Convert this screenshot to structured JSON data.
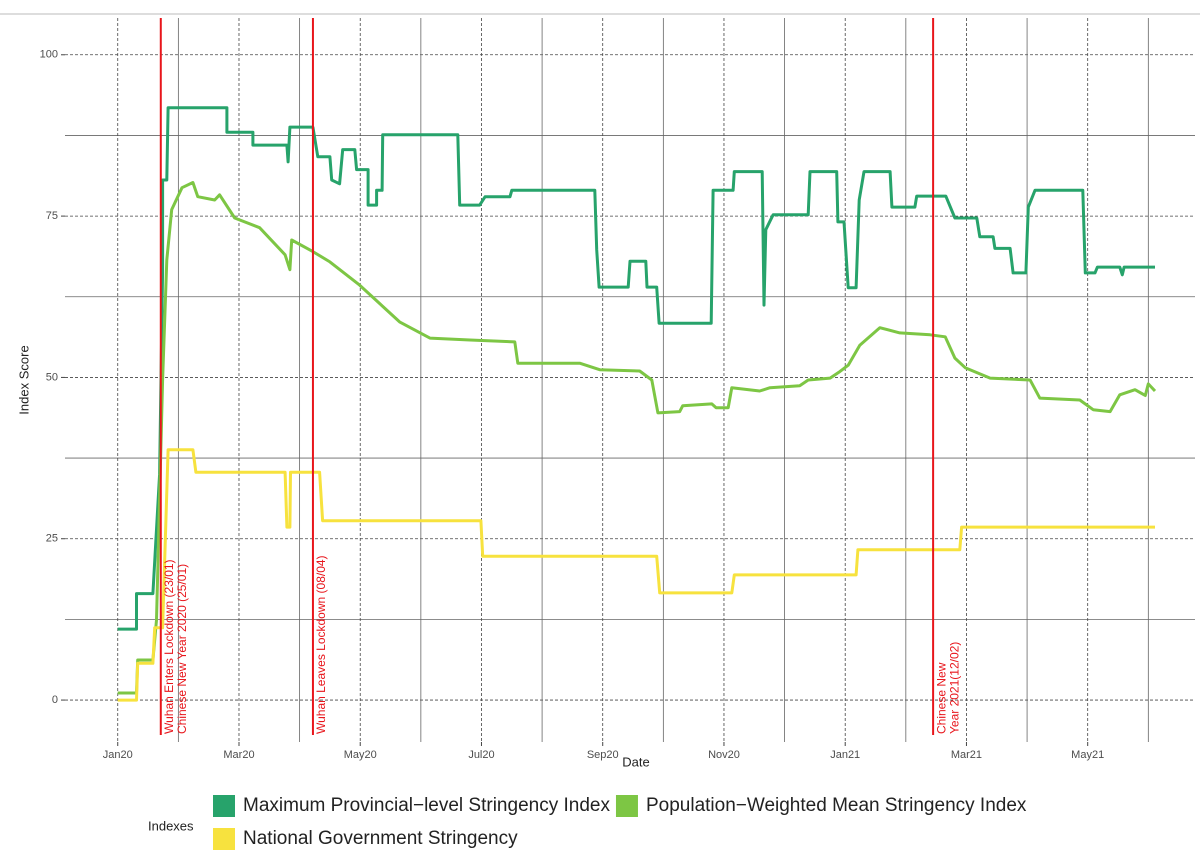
{
  "chart_data": {
    "type": "line",
    "x_label": "Date",
    "y_label": "Index Score",
    "legend_title": "Indexes",
    "legend_position": "bottom",
    "grid": true,
    "minor_grid": true,
    "xlim": [
      -0.87,
      17.77
    ],
    "xticks": [
      {
        "value": 0,
        "label": "Jan20"
      },
      {
        "value": 2,
        "label": "Mar20"
      },
      {
        "value": 4,
        "label": "May20"
      },
      {
        "value": 6,
        "label": "Jul20"
      },
      {
        "value": 8,
        "label": "Sep20"
      },
      {
        "value": 10,
        "label": "Nov20"
      },
      {
        "value": 12,
        "label": "Jan21"
      },
      {
        "value": 14,
        "label": "Mar21"
      },
      {
        "value": 16,
        "label": "May21"
      }
    ],
    "ylim": [
      -6.5,
      105.7
    ],
    "yticks": [
      0,
      25,
      50,
      75,
      100
    ],
    "annotation_color": "#e8151b",
    "annotations": [
      {
        "x": 0.71,
        "text": [
          "Wuhan Enters Lockdown (23/01)",
          "Chinese New Year 2020 (25/01)"
        ]
      },
      {
        "x": 3.22,
        "text": [
          "Wuhan Leaves Lockdown (08/04)"
        ]
      },
      {
        "x": 13.45,
        "text": [
          "Chinese New",
          "Year 2021(12/02)"
        ]
      }
    ],
    "series": [
      {
        "name": "Maximum Provincial−level Stringency Index",
        "color": "#27a36b",
        "x": [
          0,
          0.31,
          0.31,
          0.58,
          0.69,
          0.74,
          0.74,
          0.81,
          0.83,
          1.8,
          1.8,
          2.23,
          2.23,
          2.79,
          2.81,
          2.84,
          3.22,
          3.3,
          3.5,
          3.53,
          3.66,
          3.71,
          3.91,
          3.94,
          4.13,
          4.13,
          4.27,
          4.27,
          4.36,
          4.37,
          5.61,
          5.64,
          5.97,
          6.06,
          6.47,
          6.5,
          7.87,
          7.9,
          7.94,
          8.42,
          8.45,
          8.71,
          8.73,
          8.89,
          8.93,
          9.79,
          9.82,
          10.15,
          10.17,
          10.63,
          10.66,
          10.69,
          10.81,
          11.39,
          11.42,
          11.86,
          11.88,
          11.98,
          12.05,
          12.18,
          12.23,
          12.31,
          12.74,
          12.77,
          13.15,
          13.18,
          13.66,
          13.81,
          14.17,
          14.22,
          14.44,
          14.47,
          14.72,
          14.77,
          14.98,
          15.02,
          15.13,
          15.92,
          15.96,
          16.12,
          16.16,
          16.53,
          16.57,
          16.6,
          17.11
        ],
        "values": [
          11,
          11,
          16.5,
          16.5,
          35,
          66.7,
          80.6,
          80.6,
          91.8,
          91.8,
          88,
          88,
          86,
          86,
          83.4,
          88.8,
          88.8,
          84.2,
          84.2,
          80.6,
          80,
          85.3,
          85.3,
          82.2,
          82.2,
          76.7,
          76.7,
          79,
          79,
          87.6,
          87.6,
          76.7,
          76.7,
          78,
          78,
          79,
          79,
          69.8,
          64,
          64,
          68,
          68,
          64,
          64,
          58.4,
          58.4,
          79,
          79,
          81.9,
          81.9,
          61.2,
          72.9,
          75.2,
          75.2,
          81.9,
          81.9,
          74.1,
          74.1,
          63.9,
          63.9,
          77.5,
          81.9,
          81.9,
          76.4,
          76.4,
          78.1,
          78.1,
          74.7,
          74.7,
          71.8,
          71.8,
          70,
          70,
          66.2,
          66.2,
          76.4,
          79,
          79,
          66.2,
          66.2,
          67.1,
          67.1,
          65.9,
          67.1,
          67.1
        ]
      },
      {
        "name": "Population−Weighted Mean Stringency Index",
        "color": "#7dc644",
        "x": [
          0,
          0.31,
          0.33,
          0.58,
          0.64,
          0.74,
          0.81,
          0.89,
          1.06,
          1.24,
          1.32,
          1.6,
          1.68,
          1.93,
          2.34,
          2.76,
          2.84,
          2.87,
          3.22,
          3.5,
          3.99,
          4.65,
          5.15,
          5.81,
          6.55,
          6.6,
          7.62,
          7.95,
          8.61,
          8.81,
          8.91,
          9.27,
          9.32,
          9.8,
          9.87,
          10.07,
          10.13,
          10.59,
          10.76,
          11.25,
          11.39,
          11.75,
          11.91,
          12.05,
          12.24,
          12.57,
          12.9,
          13.4,
          13.65,
          13.81,
          13.98,
          14.39,
          15.05,
          15.21,
          15.87,
          16.09,
          16.37,
          16.53,
          16.78,
          16.95,
          17.0,
          17.11
        ],
        "values": [
          1.1,
          1.1,
          6.2,
          6.2,
          12.4,
          49.6,
          68.2,
          76,
          79.4,
          80.2,
          78,
          77.5,
          78.3,
          74.7,
          73.2,
          69,
          66.7,
          71.3,
          69.5,
          67.9,
          64.3,
          58.6,
          56.1,
          55.8,
          55.5,
          52.2,
          52.2,
          51.2,
          51,
          49.6,
          44.5,
          44.7,
          45.6,
          45.9,
          45.3,
          45.3,
          48.4,
          47.9,
          48.4,
          48.7,
          49.6,
          49.9,
          50.9,
          51.9,
          55,
          57.7,
          56.9,
          56.6,
          56.3,
          53,
          51.5,
          49.9,
          49.6,
          46.8,
          46.5,
          45,
          44.7,
          47.3,
          48.1,
          47.2,
          49,
          47.9
        ]
      },
      {
        "name": "National Government Stringency",
        "color": "#f7e23e",
        "x": [
          0,
          0.31,
          0.33,
          0.58,
          0.61,
          0.74,
          0.83,
          1.24,
          1.29,
          2.76,
          2.79,
          2.84,
          2.85,
          3.33,
          3.38,
          5.99,
          6.02,
          8.89,
          8.94,
          10.13,
          10.17,
          12.18,
          12.21,
          13.89,
          13.92,
          17.11
        ],
        "values": [
          0,
          0,
          5.7,
          5.7,
          11.2,
          11.2,
          38.8,
          38.8,
          35.3,
          35.3,
          26.8,
          26.8,
          35.3,
          35.3,
          27.8,
          27.8,
          22.3,
          22.3,
          16.6,
          16.6,
          19.4,
          19.4,
          23.3,
          23.3,
          26.8,
          26.8
        ]
      }
    ]
  }
}
